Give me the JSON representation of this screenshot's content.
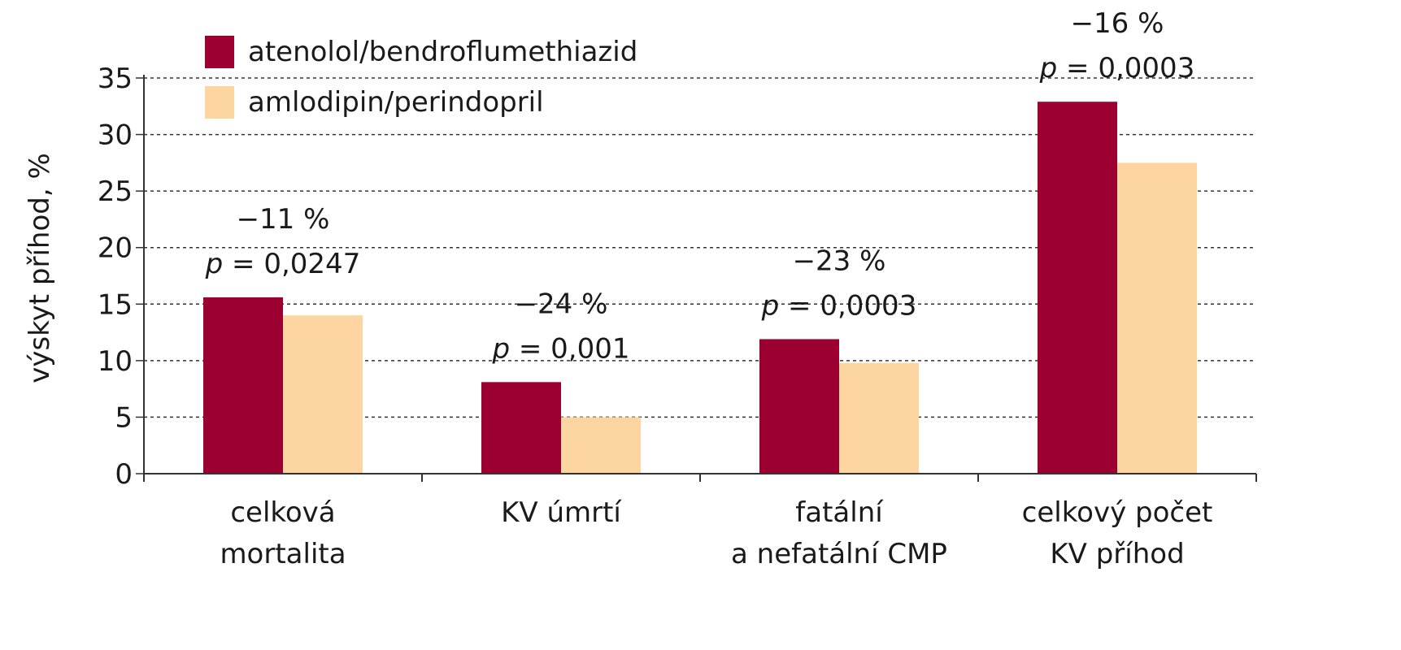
{
  "chart_data": {
    "type": "bar",
    "ylabel": "výskyt příhod, %",
    "xlabel": "",
    "ylim": [
      0,
      35
    ],
    "yticks": [
      0,
      5,
      10,
      15,
      20,
      25,
      30,
      35
    ],
    "grid": "horizontal-dashed",
    "legend_position": "top-left",
    "categories": [
      [
        "celková",
        "mortalita"
      ],
      [
        "KV úmrtí"
      ],
      [
        "fatální",
        "a nefatální CMP"
      ],
      [
        "celkový počet",
        "KV příhod"
      ]
    ],
    "series": [
      {
        "name": "atenolol/bendroflumethiazid",
        "color": "#9b0030",
        "values": [
          15.6,
          8.1,
          11.9,
          32.9
        ]
      },
      {
        "name": "amlodipin/perindopril",
        "color": "#fdd5a0",
        "values": [
          14.0,
          5.0,
          9.8,
          27.5
        ]
      }
    ],
    "annotations": [
      {
        "change": "−11 %",
        "p_label": "p",
        "p_value": "= 0,0247"
      },
      {
        "change": "−24 %",
        "p_label": "p",
        "p_value": "= 0,001"
      },
      {
        "change": "−23 %",
        "p_label": "p",
        "p_value": "= 0,0003"
      },
      {
        "change": "−16 %",
        "p_label": "p",
        "p_value": "= 0,0003"
      }
    ]
  }
}
